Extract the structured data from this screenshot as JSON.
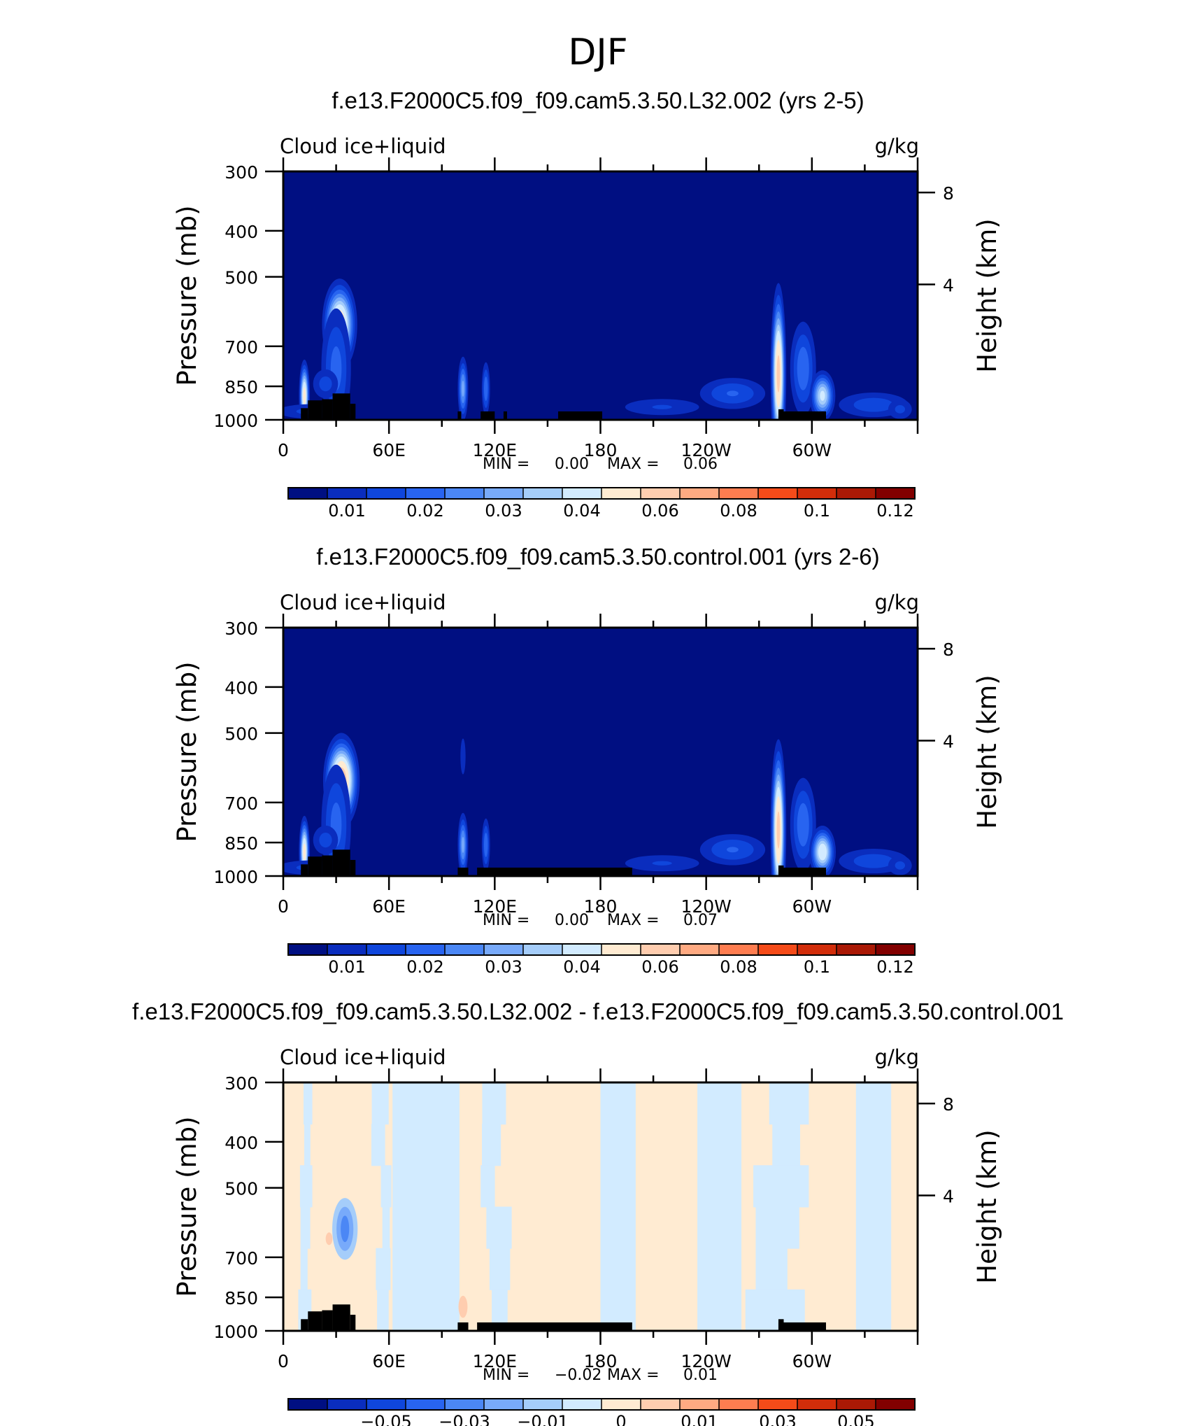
{
  "figure_title": "DJF",
  "colors": {
    "page_bg": "#ffffff",
    "frame": "#000000",
    "terrain": "#000000",
    "field_base": "#000f82"
  },
  "chart_data": [
    {
      "type": "heatmap",
      "title": "f.e13.F2000C5.f09_f09.cam5.3.50.L32.002 (yrs 2-5)",
      "left_label": "Cloud ice+liquid",
      "right_label": "g/kg",
      "ylabel": "Pressure (mb)",
      "ylabel_right": "Height (km)",
      "y_ticks": [
        "300",
        "400",
        "500",
        "700",
        "850",
        "1000"
      ],
      "y_right_ticks": [
        "8",
        "4"
      ],
      "x_ticks": [
        "0",
        "60E",
        "120E",
        "180",
        "120W",
        "60W"
      ],
      "stats": {
        "min_label": "MIN =",
        "min": "0.00",
        "max_label": "MAX =",
        "max": "0.06"
      },
      "colorbar": {
        "colors": [
          "#000f82",
          "#0a2dbe",
          "#0f46dc",
          "#2864f0",
          "#4b87f5",
          "#78aafa",
          "#a5cdfa",
          "#d2ebff",
          "#ffebd2",
          "#ffcdaf",
          "#ffaa82",
          "#ff7d50",
          "#f54b19",
          "#d22d0a",
          "#aa1905",
          "#820000"
        ],
        "labels": [
          "0.01",
          "0.02",
          "0.03",
          "0.04",
          "0.06",
          "0.08",
          "0.1",
          "0.12"
        ]
      },
      "features": [
        {
          "lon": 32,
          "p": 630,
          "amp": 0.055,
          "slon": 5,
          "sp": 70
        },
        {
          "lon": 30,
          "p": 780,
          "amp": 0.02,
          "slon": 6,
          "sp": 160
        },
        {
          "lon": 12,
          "p": 890,
          "amp": 0.05,
          "slon": 1.6,
          "sp": 80
        },
        {
          "lon": 24,
          "p": 840,
          "amp": 0.015,
          "slon": 6,
          "sp": 50
        },
        {
          "lon": 102,
          "p": 860,
          "amp": 0.03,
          "slon": 1.8,
          "sp": 80
        },
        {
          "lon": 115,
          "p": 860,
          "amp": 0.022,
          "slon": 1.6,
          "sp": 75
        },
        {
          "lon": 281,
          "p": 800,
          "amp": 0.06,
          "slon": 2.2,
          "sp": 170
        },
        {
          "lon": 295,
          "p": 780,
          "amp": 0.022,
          "slon": 5,
          "sp": 120
        },
        {
          "lon": 306,
          "p": 890,
          "amp": 0.04,
          "slon": 4,
          "sp": 60
        },
        {
          "lon": 255,
          "p": 880,
          "amp": 0.018,
          "slon": 14,
          "sp": 50
        },
        {
          "lon": 335,
          "p": 930,
          "amp": 0.016,
          "slon": 16,
          "sp": 45
        },
        {
          "lon": 215,
          "p": 940,
          "amp": 0.013,
          "slon": 20,
          "sp": 35
        },
        {
          "lon": 15,
          "p": 960,
          "amp": 0.014,
          "slon": 16,
          "sp": 30
        },
        {
          "lon": 350,
          "p": 950,
          "amp": 0.014,
          "slon": 6,
          "sp": 40
        }
      ],
      "terrain": [
        [
          10,
          14,
          945
        ],
        [
          14,
          22,
          910
        ],
        [
          22,
          28,
          905
        ],
        [
          28,
          38,
          880
        ],
        [
          38,
          41,
          925
        ],
        [
          99,
          101,
          960
        ],
        [
          112,
          120,
          960
        ],
        [
          125,
          127,
          960
        ],
        [
          156,
          181,
          960
        ],
        [
          281,
          284,
          950
        ],
        [
          281,
          308,
          960
        ]
      ]
    },
    {
      "type": "heatmap",
      "title": "f.e13.F2000C5.f09_f09.cam5.3.50.control.001 (yrs 2-6)",
      "left_label": "Cloud ice+liquid",
      "right_label": "g/kg",
      "ylabel": "Pressure (mb)",
      "ylabel_right": "Height (km)",
      "y_ticks": [
        "300",
        "400",
        "500",
        "700",
        "850",
        "1000"
      ],
      "y_right_ticks": [
        "8",
        "4"
      ],
      "x_ticks": [
        "0",
        "60E",
        "120E",
        "180",
        "120W",
        "60W"
      ],
      "stats": {
        "min_label": "MIN =",
        "min": "0.00",
        "max_label": "MAX =",
        "max": "0.07"
      },
      "colorbar": {
        "colors": [
          "#000f82",
          "#0a2dbe",
          "#0f46dc",
          "#2864f0",
          "#4b87f5",
          "#78aafa",
          "#a5cdfa",
          "#d2ebff",
          "#ffebd2",
          "#ffcdaf",
          "#ffaa82",
          "#ff7d50",
          "#f54b19",
          "#d22d0a",
          "#aa1905",
          "#820000"
        ],
        "labels": [
          "0.01",
          "0.02",
          "0.03",
          "0.04",
          "0.06",
          "0.08",
          "0.1",
          "0.12"
        ]
      },
      "features": [
        {
          "lon": 33,
          "p": 630,
          "amp": 0.065,
          "slon": 5,
          "sp": 70
        },
        {
          "lon": 30,
          "p": 780,
          "amp": 0.02,
          "slon": 6,
          "sp": 160
        },
        {
          "lon": 12,
          "p": 890,
          "amp": 0.05,
          "slon": 1.6,
          "sp": 80
        },
        {
          "lon": 24,
          "p": 840,
          "amp": 0.015,
          "slon": 6,
          "sp": 50
        },
        {
          "lon": 102,
          "p": 860,
          "amp": 0.03,
          "slon": 1.8,
          "sp": 80
        },
        {
          "lon": 102,
          "p": 560,
          "amp": 0.012,
          "slon": 1.5,
          "sp": 50
        },
        {
          "lon": 115,
          "p": 860,
          "amp": 0.022,
          "slon": 1.6,
          "sp": 75
        },
        {
          "lon": 281,
          "p": 800,
          "amp": 0.06,
          "slon": 2.2,
          "sp": 170
        },
        {
          "lon": 295,
          "p": 780,
          "amp": 0.022,
          "slon": 5,
          "sp": 120
        },
        {
          "lon": 306,
          "p": 890,
          "amp": 0.045,
          "slon": 4,
          "sp": 60
        },
        {
          "lon": 255,
          "p": 880,
          "amp": 0.018,
          "slon": 14,
          "sp": 50
        },
        {
          "lon": 335,
          "p": 930,
          "amp": 0.016,
          "slon": 16,
          "sp": 45
        },
        {
          "lon": 215,
          "p": 940,
          "amp": 0.013,
          "slon": 20,
          "sp": 35
        },
        {
          "lon": 15,
          "p": 960,
          "amp": 0.014,
          "slon": 16,
          "sp": 30
        },
        {
          "lon": 350,
          "p": 950,
          "amp": 0.014,
          "slon": 6,
          "sp": 40
        }
      ],
      "terrain": [
        [
          10,
          14,
          945
        ],
        [
          14,
          22,
          910
        ],
        [
          22,
          28,
          905
        ],
        [
          28,
          38,
          880
        ],
        [
          38,
          41,
          925
        ],
        [
          99,
          105,
          960
        ],
        [
          110,
          198,
          960
        ],
        [
          281,
          284,
          950
        ],
        [
          281,
          308,
          960
        ]
      ]
    },
    {
      "type": "heatmap",
      "title": "f.e13.F2000C5.f09_f09.cam5.3.50.L32.002 - f.e13.F2000C5.f09_f09.cam5.3.50.control.001",
      "left_label": "Cloud ice+liquid",
      "right_label": "g/kg",
      "ylabel": "Pressure (mb)",
      "ylabel_right": "Height (km)",
      "y_ticks": [
        "300",
        "400",
        "500",
        "700",
        "850",
        "1000"
      ],
      "y_right_ticks": [
        "8",
        "4"
      ],
      "x_ticks": [
        "0",
        "60E",
        "120E",
        "180",
        "120W",
        "60W"
      ],
      "stats": {
        "min_label": "MIN =",
        "min": "−0.02",
        "max_label": "MAX =",
        "max": "0.01"
      },
      "colorbar": {
        "colors": [
          "#000f82",
          "#0a2dbe",
          "#0f46dc",
          "#2864f0",
          "#4b87f5",
          "#78aafa",
          "#a5cdfa",
          "#d2ebff",
          "#ffebd2",
          "#ffcdaf",
          "#ffaa82",
          "#ff7d50",
          "#f54b19",
          "#d22d0a",
          "#aa1905",
          "#820000"
        ],
        "labels": [
          "−0.05",
          "−0.03",
          "−0.01",
          "0",
          "0.01",
          "0.03",
          "0.05"
        ]
      },
      "diff_bands": [
        {
          "from": 0,
          "to": 8,
          "sign": "pos"
        },
        {
          "from": 8,
          "to": 18,
          "sign": "mix"
        },
        {
          "from": 18,
          "to": 50,
          "sign": "pos"
        },
        {
          "from": 50,
          "to": 62,
          "sign": "mix"
        },
        {
          "from": 62,
          "to": 100,
          "sign": "neg"
        },
        {
          "from": 100,
          "to": 112,
          "sign": "pos"
        },
        {
          "from": 112,
          "to": 130,
          "sign": "mix"
        },
        {
          "from": 130,
          "to": 180,
          "sign": "pos"
        },
        {
          "from": 180,
          "to": 200,
          "sign": "neg"
        },
        {
          "from": 200,
          "to": 235,
          "sign": "pos"
        },
        {
          "from": 235,
          "to": 260,
          "sign": "neg"
        },
        {
          "from": 260,
          "to": 305,
          "sign": "mix"
        },
        {
          "from": 305,
          "to": 325,
          "sign": "pos"
        },
        {
          "from": 325,
          "to": 345,
          "sign": "neg"
        },
        {
          "from": 345,
          "to": 360,
          "sign": "pos"
        }
      ],
      "diff_spots": [
        {
          "lon": 35,
          "p": 610,
          "value": -0.02,
          "w": 4,
          "h": 70
        },
        {
          "lon": 26,
          "p": 640,
          "value": 0.006,
          "w": 1.2,
          "h": 20
        },
        {
          "lon": 102,
          "p": 890,
          "value": 0.006,
          "w": 1.6,
          "h": 35
        }
      ],
      "terrain": [
        [
          10,
          14,
          945
        ],
        [
          14,
          22,
          910
        ],
        [
          22,
          28,
          905
        ],
        [
          28,
          38,
          880
        ],
        [
          38,
          41,
          925
        ],
        [
          99,
          105,
          960
        ],
        [
          110,
          198,
          960
        ],
        [
          281,
          284,
          945
        ],
        [
          281,
          308,
          960
        ]
      ]
    }
  ]
}
